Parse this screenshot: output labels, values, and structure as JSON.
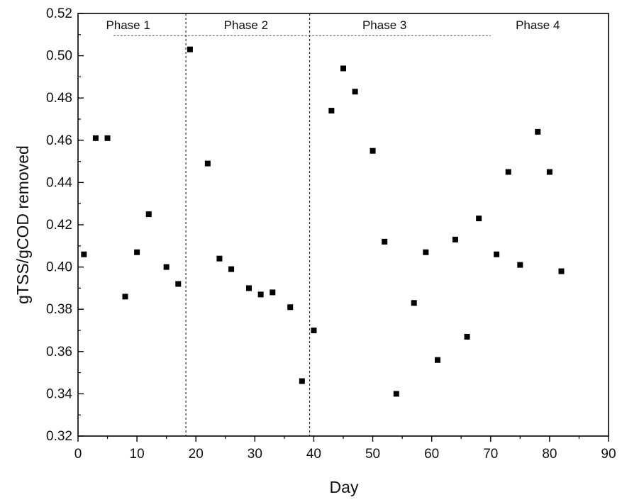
{
  "chart_data": {
    "type": "scatter",
    "title": "",
    "xlabel": "Day",
    "ylabel": "gTSS/gCOD removed",
    "xlim": [
      0,
      90
    ],
    "ylim": [
      0.32,
      0.52
    ],
    "x_ticks": [
      0,
      10,
      20,
      30,
      40,
      50,
      60,
      70,
      80,
      90
    ],
    "y_ticks": [
      "0.32",
      "0.34",
      "0.36",
      "0.38",
      "0.40",
      "0.42",
      "0.44",
      "0.46",
      "0.48",
      "0.50",
      "0.52"
    ],
    "grid": false,
    "marker": "square",
    "marker_color": "#000000",
    "phase_boundaries": [
      18.3,
      39.3
    ],
    "phases": [
      {
        "label": "Phase 1",
        "center_x": 8.5
      },
      {
        "label": "Phase 2",
        "center_x": 28.5
      },
      {
        "label": "Phase 3",
        "center_x": 52
      },
      {
        "label": "Phase 4",
        "center_x": 78
      }
    ],
    "phase_bar": {
      "x_start": 6,
      "x_end": 70,
      "y": 0.5095
    },
    "points": [
      {
        "x": 1,
        "y": 0.406
      },
      {
        "x": 3,
        "y": 0.461
      },
      {
        "x": 5,
        "y": 0.461
      },
      {
        "x": 8,
        "y": 0.386
      },
      {
        "x": 10,
        "y": 0.407
      },
      {
        "x": 12,
        "y": 0.425
      },
      {
        "x": 15,
        "y": 0.4
      },
      {
        "x": 17,
        "y": 0.392
      },
      {
        "x": 19,
        "y": 0.503
      },
      {
        "x": 22,
        "y": 0.449
      },
      {
        "x": 24,
        "y": 0.404
      },
      {
        "x": 26,
        "y": 0.399
      },
      {
        "x": 29,
        "y": 0.39
      },
      {
        "x": 31,
        "y": 0.387
      },
      {
        "x": 33,
        "y": 0.388
      },
      {
        "x": 36,
        "y": 0.381
      },
      {
        "x": 38,
        "y": 0.346
      },
      {
        "x": 40,
        "y": 0.37
      },
      {
        "x": 43,
        "y": 0.474
      },
      {
        "x": 45,
        "y": 0.494
      },
      {
        "x": 47,
        "y": 0.483
      },
      {
        "x": 50,
        "y": 0.455
      },
      {
        "x": 52,
        "y": 0.412
      },
      {
        "x": 54,
        "y": 0.34
      },
      {
        "x": 57,
        "y": 0.383
      },
      {
        "x": 59,
        "y": 0.407
      },
      {
        "x": 61,
        "y": 0.356
      },
      {
        "x": 64,
        "y": 0.413
      },
      {
        "x": 66,
        "y": 0.367
      },
      {
        "x": 68,
        "y": 0.423
      },
      {
        "x": 71,
        "y": 0.406
      },
      {
        "x": 73,
        "y": 0.445
      },
      {
        "x": 75,
        "y": 0.401
      },
      {
        "x": 78,
        "y": 0.464
      },
      {
        "x": 80,
        "y": 0.445
      },
      {
        "x": 82,
        "y": 0.398
      }
    ]
  }
}
